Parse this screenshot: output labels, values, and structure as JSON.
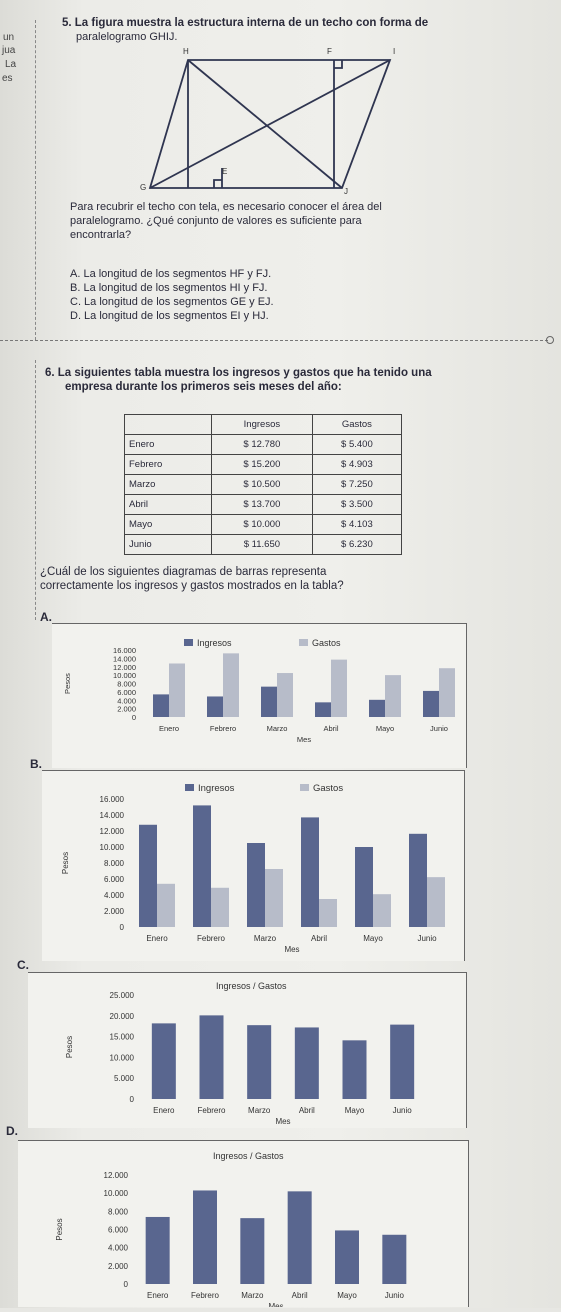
{
  "margin_fragments": [
    "un",
    "jua",
    "La",
    "es"
  ],
  "q5": {
    "title": "5. La figura muestra la estructura interna de un techo con forma de",
    "title2": "paralelogramo GHIJ.",
    "vertices": {
      "H": "H",
      "F": "F",
      "I": "I",
      "G": "G",
      "E": "E",
      "J": "J"
    },
    "prompt1": "Para recubrir el techo con tela, es necesario conocer el área del",
    "prompt2": "paralelogramo. ¿Qué conjunto de valores es suficiente para",
    "prompt3": "encontrarla?",
    "options": [
      "A. La longitud de los segmentos HF y FJ.",
      "B. La longitud de los segmentos HI y FJ.",
      "C. La longitud de los segmentos GE y EJ.",
      "D. La longitud de los segmentos EI y HJ."
    ]
  },
  "q6": {
    "title": "6. La siguientes tabla muestra los ingresos y gastos que ha tenido una",
    "title2": "empresa durante los primeros seis meses del año:",
    "table": {
      "headers": [
        "",
        "Ingresos",
        "Gastos"
      ],
      "rows": [
        [
          "Enero",
          "$ 12.780",
          "$ 5.400"
        ],
        [
          "Febrero",
          "$ 15.200",
          "$ 4.903"
        ],
        [
          "Marzo",
          "$ 10.500",
          "$ 7.250"
        ],
        [
          "Abril",
          "$ 13.700",
          "$ 3.500"
        ],
        [
          "Mayo",
          "$ 10.000",
          "$ 4.103"
        ],
        [
          "Junio",
          "$ 11.650",
          "$ 6.230"
        ]
      ]
    },
    "prompt1": "¿Cuál de los siguientes diagramas de barras representa",
    "prompt2": "correctamente los ingresos y gastos mostrados en la tabla?",
    "option_letters": [
      "A.",
      "B.",
      "C.",
      "D."
    ]
  },
  "colors": {
    "dark_bar": "#59668f",
    "light_bar": "#b7bcc9",
    "panel": "#f2f2ee",
    "line": "#444444"
  },
  "chart_data": [
    {
      "type": "bar",
      "option": "A",
      "categories": [
        "Enero",
        "Febrero",
        "Marzo",
        "Abril",
        "Mayo",
        "Junio"
      ],
      "series": [
        {
          "name": "Ingresos",
          "values": [
            5400,
            4903,
            7250,
            3500,
            4103,
            6230
          ]
        },
        {
          "name": "Gastos",
          "values": [
            12780,
            15200,
            10500,
            13700,
            10000,
            11650
          ]
        }
      ],
      "yticks": [
        "16.000",
        "14.000",
        "12.000",
        "10.000",
        "8.000",
        "6.000",
        "4.000",
        "2.000",
        "0"
      ],
      "ylim": [
        0,
        16000
      ],
      "xlabel": "Mes",
      "ylabel": "Pesos",
      "legend": "top"
    },
    {
      "type": "bar",
      "option": "B",
      "categories": [
        "Enero",
        "Febrero",
        "Marzo",
        "Abril",
        "Mayo",
        "Junio"
      ],
      "series": [
        {
          "name": "Ingresos",
          "values": [
            12780,
            15200,
            10500,
            13700,
            10000,
            11650
          ]
        },
        {
          "name": "Gastos",
          "values": [
            5400,
            4903,
            7250,
            3500,
            4103,
            6230
          ]
        }
      ],
      "yticks": [
        "16.000",
        "14.000",
        "12.000",
        "10.000",
        "8.000",
        "6.000",
        "4.000",
        "2.000",
        "0"
      ],
      "ylim": [
        0,
        16000
      ],
      "xlabel": "Mes",
      "ylabel": "Pesos",
      "legend": "top"
    },
    {
      "type": "bar",
      "option": "C",
      "title": "Ingresos / Gastos",
      "categories": [
        "Enero",
        "Febrero",
        "Marzo",
        "Abril",
        "Mayo",
        "Junio"
      ],
      "series": [
        {
          "values": [
            18180,
            20103,
            17750,
            17200,
            14103,
            17880
          ]
        }
      ],
      "yticks": [
        "25.000",
        "20.000",
        "15.000",
        "10.000",
        "5.000",
        "0"
      ],
      "ylim": [
        0,
        25000
      ],
      "xlabel": "Mes",
      "ylabel": "Pesos"
    },
    {
      "type": "bar",
      "option": "D",
      "title": "Ingresos / Gastos",
      "categories": [
        "Enero",
        "Febrero",
        "Marzo",
        "Abril",
        "Mayo",
        "Junio"
      ],
      "series": [
        {
          "values": [
            7380,
            10297,
            7250,
            10200,
            5897,
            5420
          ]
        }
      ],
      "yticks": [
        "12.000",
        "10.000",
        "8.000",
        "6.000",
        "4.000",
        "2.000",
        "0"
      ],
      "ylim": [
        0,
        12000
      ],
      "xlabel": "Mes",
      "ylabel": "Pesos"
    }
  ]
}
